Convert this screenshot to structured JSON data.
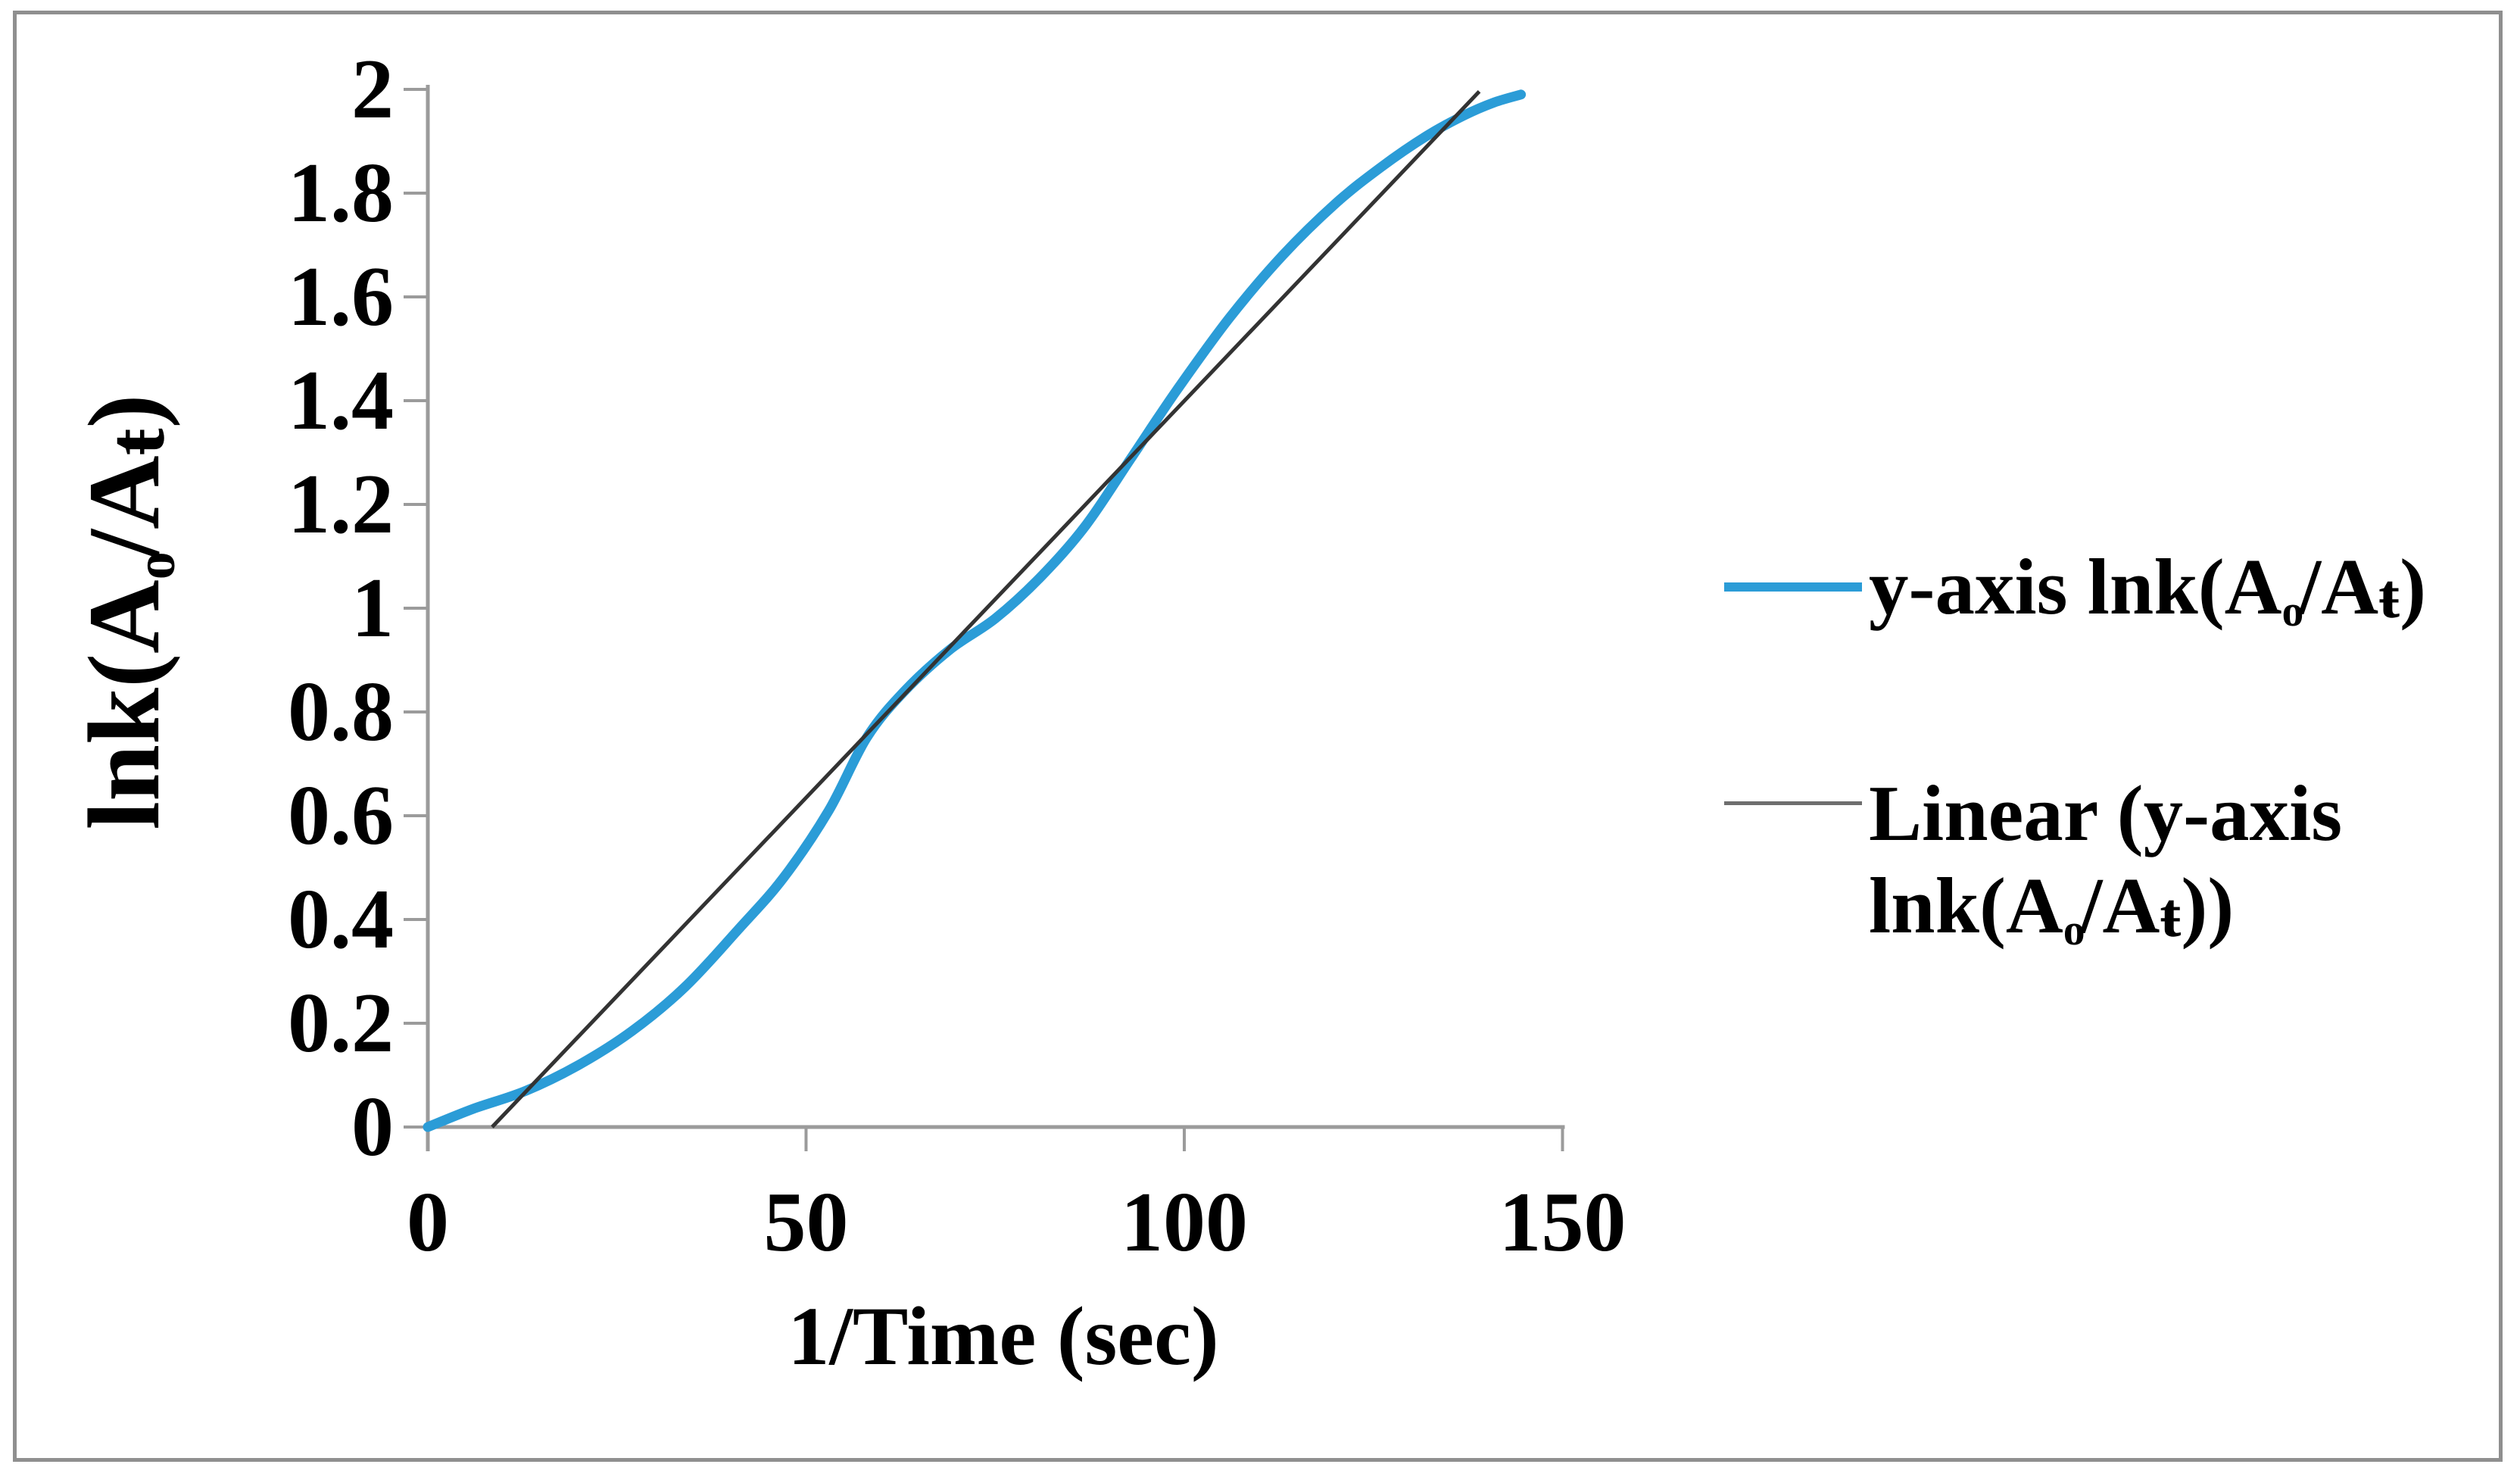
{
  "colors": {
    "series_blue": "#2B9CD7",
    "trendline": "#333333",
    "trendline_swatch": "#6e6e6e",
    "axis_gray": "#9b9b9b",
    "border_gray": "#8f8f8f",
    "text": "#000000",
    "background": "#ffffff"
  },
  "y_axis": {
    "title_plain": "lnk(Ao/At)",
    "title_parts": {
      "pre": "lnk(A",
      "sub": "o",
      "mid": "/A",
      "t": "ŧ",
      "post": ")"
    },
    "ticks": [
      {
        "label": "2",
        "value": 2
      },
      {
        "label": "1.8",
        "value": 1.8
      },
      {
        "label": "1.6",
        "value": 1.6
      },
      {
        "label": "1.4",
        "value": 1.4
      },
      {
        "label": "1.2",
        "value": 1.2
      },
      {
        "label": "1",
        "value": 1
      },
      {
        "label": "0.8",
        "value": 0.8
      },
      {
        "label": "0.6",
        "value": 0.6
      },
      {
        "label": "0.4",
        "value": 0.4
      },
      {
        "label": "0.2",
        "value": 0.2
      },
      {
        "label": "0",
        "value": 0
      }
    ]
  },
  "x_axis": {
    "title": "1/Time (sec)",
    "ticks": [
      {
        "label": "0",
        "value": 0
      },
      {
        "label": "50",
        "value": 50
      },
      {
        "label": "100",
        "value": 100
      },
      {
        "label": "150",
        "value": 150
      }
    ]
  },
  "legend": {
    "position": "right",
    "entries": [
      {
        "name": "series",
        "label_plain": "y-axis lnk(Ao/At)",
        "label_pre": "y-axis lnk(A",
        "label_sub": "o",
        "label_mid": "/A",
        "label_t": "ŧ",
        "label_post": ")"
      },
      {
        "name": "trendline",
        "label_plain": "Linear (y-axis lnk(Ao/At))",
        "line1": "Linear (y-axis",
        "line2_pre": "lnk(A",
        "line2_sub": "o",
        "line2_mid": "/A",
        "line2_t": "ŧ",
        "line2_post": "))"
      }
    ]
  },
  "chart_data": {
    "type": "line",
    "title": "",
    "xlabel": "1/Time (sec)",
    "ylabel": "lnk(Ao/At)",
    "xlim": [
      0,
      150
    ],
    "ylim": [
      0,
      2
    ],
    "x_ticks": [
      0,
      50,
      100,
      150
    ],
    "y_ticks": [
      0,
      0.2,
      0.4,
      0.6,
      0.8,
      1,
      1.2,
      1.4,
      1.6,
      1.8,
      2
    ],
    "grid": false,
    "legend_position": "right",
    "series": [
      {
        "name": "y-axis lnk(Ao/At)",
        "type": "smooth-line",
        "color": "#2B9CD7",
        "points": [
          [
            0,
            0
          ],
          [
            6,
            0.035
          ],
          [
            13,
            0.07
          ],
          [
            20,
            0.12
          ],
          [
            27,
            0.185
          ],
          [
            34,
            0.27
          ],
          [
            41,
            0.38
          ],
          [
            47,
            0.48
          ],
          [
            53,
            0.61
          ],
          [
            58,
            0.75
          ],
          [
            63,
            0.84
          ],
          [
            69,
            0.92
          ],
          [
            75,
            0.98
          ],
          [
            81,
            1.06
          ],
          [
            87,
            1.16
          ],
          [
            93,
            1.29
          ],
          [
            99,
            1.42
          ],
          [
            106,
            1.56
          ],
          [
            113,
            1.68
          ],
          [
            120,
            1.78
          ],
          [
            126,
            1.85
          ],
          [
            132,
            1.91
          ],
          [
            137,
            1.95
          ],
          [
            141,
            1.975
          ],
          [
            144.5,
            1.99
          ]
        ]
      },
      {
        "name": "Linear (y-axis lnk(Ao/At))",
        "type": "linear-trendline",
        "color": "#333333",
        "points": [
          [
            8.5,
            0
          ],
          [
            139,
            1.996
          ]
        ],
        "slope": 0.0153,
        "x_intercept": 8.5
      }
    ]
  }
}
